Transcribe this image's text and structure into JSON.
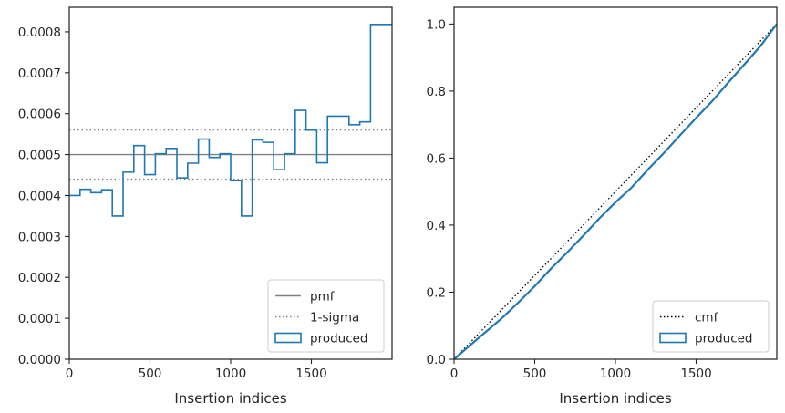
{
  "colors": {
    "produced": "#1f77b4",
    "pmf": "#808080",
    "sigma": "#808080",
    "cmf": "#000000",
    "axes": "#262626"
  },
  "chart_data": [
    {
      "type": "step",
      "xlabel": "Insertion indices",
      "ylabel": "",
      "xlim": [
        0,
        2000
      ],
      "ylim": [
        0,
        0.00086
      ],
      "x_ticks": [
        0,
        500,
        1000,
        1500
      ],
      "y_ticks": [
        0,
        0.0001,
        0.0002,
        0.0003,
        0.0004,
        0.0005,
        0.0006,
        0.0007,
        0.0008
      ],
      "x_tick_labels": [
        "0",
        "500",
        "1000",
        "1500"
      ],
      "y_tick_labels": [
        "0.0000",
        "0.0001",
        "0.0002",
        "0.0003",
        "0.0004",
        "0.0005",
        "0.0006",
        "0.0007",
        "0.0008"
      ],
      "grid": false,
      "legend_position": "lower-right",
      "legend": [
        "pmf",
        "1-sigma",
        "produced"
      ],
      "hlines": [
        {
          "name": "pmf",
          "y": 0.0005,
          "style": "solid"
        },
        {
          "name": "1-sigma",
          "y": 0.00056,
          "style": "dotted"
        },
        {
          "name": "1-sigma",
          "y": 0.00044,
          "style": "dotted"
        }
      ],
      "series": [
        {
          "name": "produced",
          "bin_width": 66.67,
          "values": [
            0.0004,
            0.000415,
            0.000407,
            0.000414,
            0.00035,
            0.000457,
            0.000522,
            0.000451,
            0.000502,
            0.000515,
            0.000443,
            0.000479,
            0.000538,
            0.000493,
            0.000502,
            0.000437,
            0.00035,
            0.000536,
            0.00053,
            0.000463,
            0.000502,
            0.000608,
            0.00056,
            0.00048,
            0.000594,
            0.000594,
            0.000573,
            0.00058,
            0.000818,
            0.000818
          ]
        }
      ]
    },
    {
      "type": "line",
      "xlabel": "Insertion indices",
      "ylabel": "",
      "xlim": [
        0,
        2000
      ],
      "ylim": [
        0,
        1.05
      ],
      "x_ticks": [
        0,
        500,
        1000,
        1500
      ],
      "y_ticks": [
        0,
        0.2,
        0.4,
        0.6,
        0.8,
        1.0
      ],
      "x_tick_labels": [
        "0",
        "500",
        "1000",
        "1500"
      ],
      "y_tick_labels": [
        "0.0",
        "0.2",
        "0.4",
        "0.6",
        "0.8",
        "1.0"
      ],
      "grid": false,
      "legend_position": "lower-right",
      "legend": [
        "cmf",
        "produced"
      ],
      "series": [
        {
          "name": "cmf",
          "style": "dotted",
          "x": [
            0,
            2000
          ],
          "y": [
            0,
            1.0
          ]
        },
        {
          "name": "produced",
          "style": "solid",
          "x": [
            0,
            100,
            200,
            300,
            400,
            500,
            600,
            700,
            800,
            900,
            1000,
            1100,
            1200,
            1300,
            1400,
            1500,
            1600,
            1700,
            1800,
            1900,
            2000
          ],
          "y": [
            0.0,
            0.042,
            0.083,
            0.124,
            0.17,
            0.218,
            0.27,
            0.318,
            0.368,
            0.42,
            0.468,
            0.512,
            0.565,
            0.615,
            0.668,
            0.72,
            0.77,
            0.826,
            0.88,
            0.935,
            1.0
          ]
        }
      ]
    }
  ]
}
